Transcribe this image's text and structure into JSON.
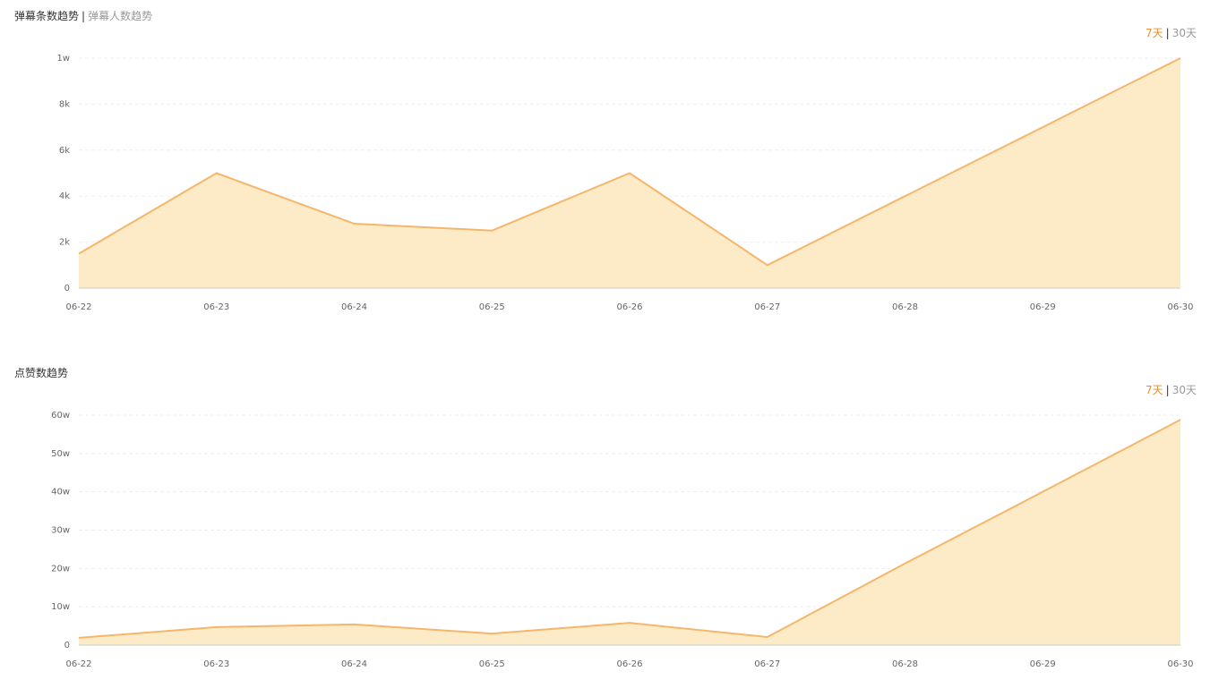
{
  "separator": "|",
  "chart_data": [
    {
      "type": "area",
      "tabs": [
        "弹幕条数趋势",
        "弹幕人数趋势"
      ],
      "ranges": [
        "7天",
        "30天"
      ],
      "categories": [
        "06-22",
        "06-23",
        "06-24",
        "06-25",
        "06-26",
        "06-27",
        "06-28",
        "06-29",
        "06-30"
      ],
      "values": [
        1500,
        5000,
        2800,
        2500,
        5000,
        1000,
        4000,
        7000,
        10000
      ],
      "color": "#f5b66a",
      "fill": "#fdebc8",
      "grid": true,
      "ylim": [
        0,
        10000
      ],
      "yticks": [
        0,
        {
          "value": 2000,
          "label": "2k"
        },
        {
          "value": 4000,
          "label": "4k"
        },
        {
          "value": 6000,
          "label": "6k"
        },
        {
          "value": 8000,
          "label": "8k"
        },
        {
          "value": 10000,
          "label": "1w"
        }
      ]
    },
    {
      "type": "area",
      "tabs": [
        "点赞数趋势"
      ],
      "ranges": [
        "7天",
        "30天"
      ],
      "categories": [
        "06-22",
        "06-23",
        "06-24",
        "06-25",
        "06-26",
        "06-27",
        "06-28",
        "06-29",
        "06-30"
      ],
      "values": [
        19000,
        47000,
        54000,
        30000,
        58000,
        21000,
        213000,
        400000,
        588000
      ],
      "color": "#f5b66a",
      "fill": "#fdebc8",
      "grid": true,
      "ylim": [
        0,
        600000
      ],
      "yticks": [
        0,
        {
          "value": 100000,
          "label": "10w"
        },
        {
          "value": 200000,
          "label": "20w"
        },
        {
          "value": 300000,
          "label": "30w"
        },
        {
          "value": 400000,
          "label": "40w"
        },
        {
          "value": 500000,
          "label": "50w"
        },
        {
          "value": 600000,
          "label": "60w"
        }
      ]
    }
  ]
}
